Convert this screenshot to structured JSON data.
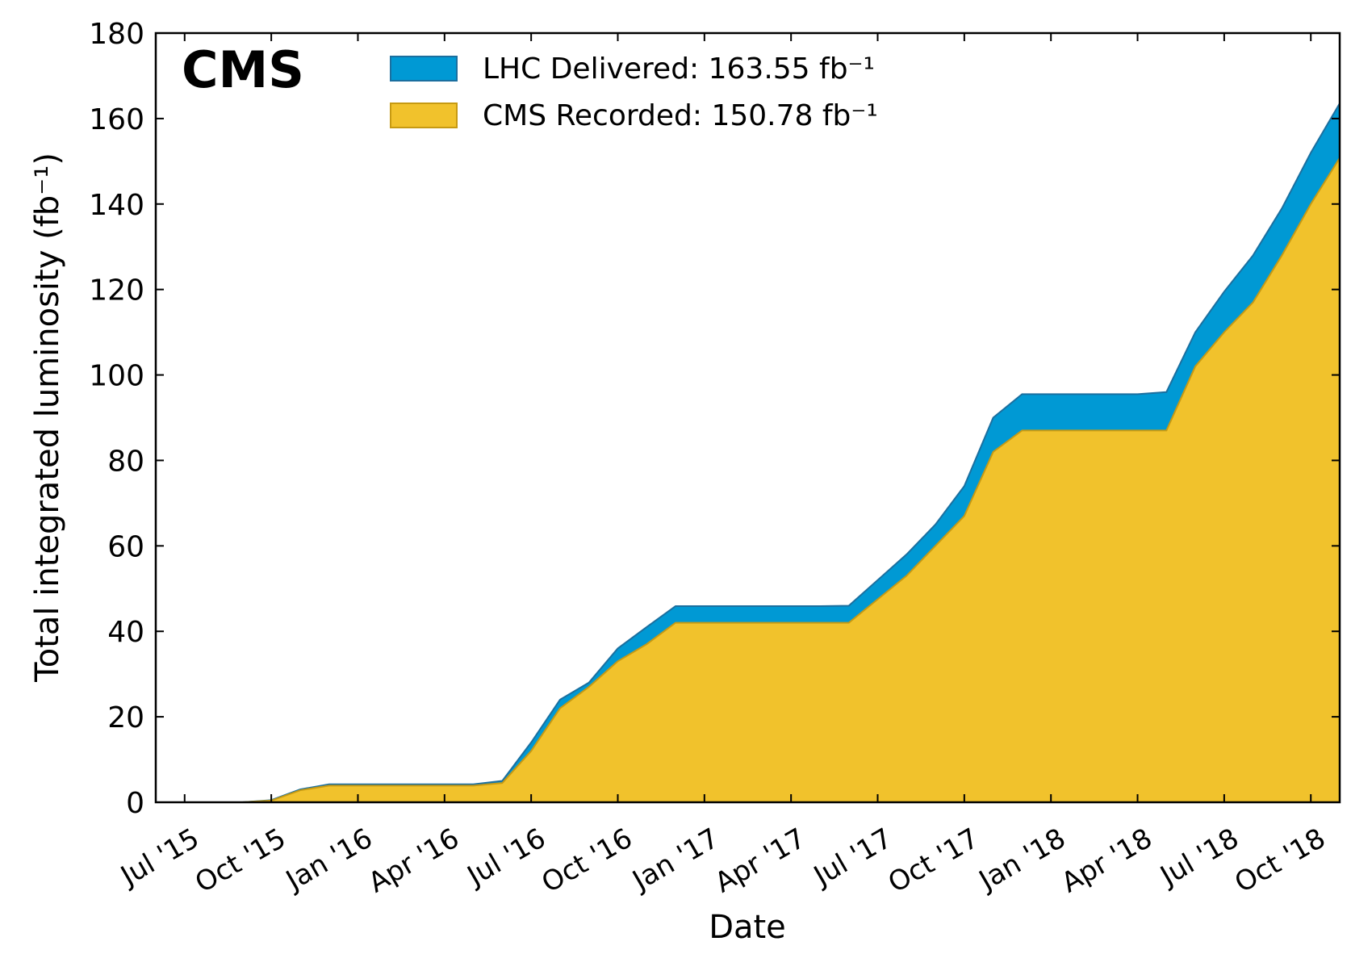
{
  "chart_data": {
    "type": "area",
    "annotation": "CMS",
    "x_label": "Date",
    "y_label": "Total integrated luminosity (fb⁻¹)",
    "x": [
      "2015-07",
      "2015-08",
      "2015-09",
      "2015-10",
      "2015-11",
      "2015-12",
      "2016-01",
      "2016-02",
      "2016-03",
      "2016-04",
      "2016-05",
      "2016-06",
      "2016-07",
      "2016-08",
      "2016-09",
      "2016-10",
      "2016-11",
      "2016-12",
      "2017-01",
      "2017-02",
      "2017-03",
      "2017-04",
      "2017-05",
      "2017-06",
      "2017-07",
      "2017-08",
      "2017-09",
      "2017-10",
      "2017-11",
      "2017-12",
      "2018-01",
      "2018-02",
      "2018-03",
      "2018-04",
      "2018-05",
      "2018-06",
      "2018-07",
      "2018-08",
      "2018-09",
      "2018-10",
      "2018-11"
    ],
    "series": [
      {
        "name": "LHC Delivered: 163.55 fb⁻¹",
        "color": "#0099d4",
        "edge": "#1b6f9f",
        "values": [
          0,
          0,
          0,
          0.5,
          3,
          4.2,
          4.2,
          4.2,
          4.2,
          4.2,
          4.2,
          5,
          14,
          24,
          28,
          36,
          41,
          45.9,
          45.9,
          45.9,
          45.9,
          45.9,
          45.9,
          46,
          52,
          58,
          65,
          74,
          90,
          95.5,
          95.5,
          95.5,
          95.5,
          95.5,
          96,
          110,
          119.5,
          128,
          139,
          152,
          163.55
        ]
      },
      {
        "name": "CMS Recorded: 150.78 fb⁻¹",
        "color": "#f1c22c",
        "edge": "#c79a12",
        "values": [
          0,
          0,
          0,
          0.4,
          2.8,
          3.9,
          3.9,
          3.9,
          3.9,
          3.9,
          3.9,
          4.5,
          12,
          22,
          27,
          33,
          37,
          42,
          42,
          42,
          42,
          42,
          42,
          42,
          47.5,
          53,
          60,
          67,
          82,
          87,
          87,
          87,
          87,
          87,
          87,
          102,
          110,
          117,
          128,
          140,
          150.78
        ]
      }
    ],
    "xlim": [
      "2015-06",
      "2018-11"
    ],
    "xticks": [
      {
        "value": "2015-07",
        "label": "Jul '15"
      },
      {
        "value": "2015-10",
        "label": "Oct '15"
      },
      {
        "value": "2016-01",
        "label": "Jan '16"
      },
      {
        "value": "2016-04",
        "label": "Apr '16"
      },
      {
        "value": "2016-07",
        "label": "Jul '16"
      },
      {
        "value": "2016-10",
        "label": "Oct '16"
      },
      {
        "value": "2017-01",
        "label": "Jan '17"
      },
      {
        "value": "2017-04",
        "label": "Apr '17"
      },
      {
        "value": "2017-07",
        "label": "Jul '17"
      },
      {
        "value": "2017-10",
        "label": "Oct '17"
      },
      {
        "value": "2018-01",
        "label": "Jan '18"
      },
      {
        "value": "2018-04",
        "label": "Apr '18"
      },
      {
        "value": "2018-07",
        "label": "Jul '18"
      },
      {
        "value": "2018-10",
        "label": "Oct '18"
      }
    ],
    "ylim": [
      0,
      180
    ],
    "yticks": [
      0,
      20,
      40,
      60,
      80,
      100,
      120,
      140,
      160,
      180
    ],
    "grid": false,
    "legend": "top-center"
  }
}
